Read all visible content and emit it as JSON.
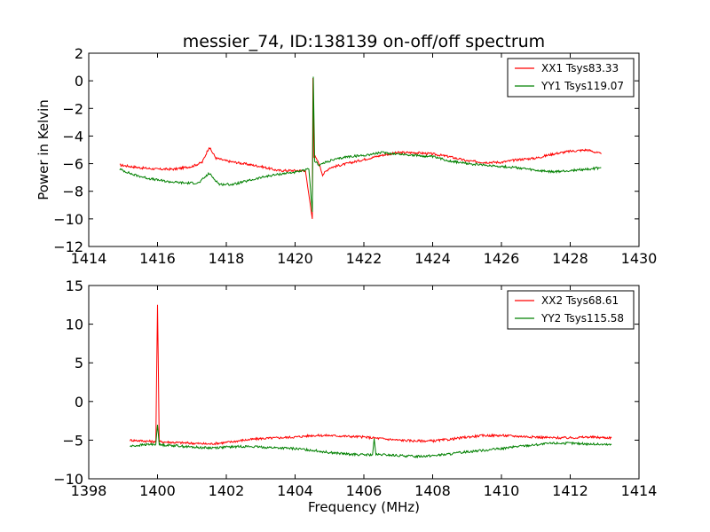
{
  "figure": {
    "title": "messier_74, ID:138139 on-off/off spectrum"
  },
  "chart_data": [
    {
      "type": "line",
      "title": "messier_74, ID:138139 on-off/off spectrum",
      "xlabel": "",
      "ylabel": "Power in Kelvin",
      "xlim": [
        1414,
        1430
      ],
      "ylim": [
        -12,
        2
      ],
      "xticks": [
        1414,
        1416,
        1418,
        1420,
        1422,
        1424,
        1426,
        1428,
        1430
      ],
      "yticks": [
        -12,
        -10,
        -8,
        -6,
        -4,
        -2,
        0,
        2
      ],
      "grid": false,
      "legend": "top-right",
      "series": [
        {
          "name": "XX1 Tsys83.33",
          "color": "#ff0000",
          "x": [
            1414.9,
            1415.5,
            1416.0,
            1416.5,
            1417.0,
            1417.3,
            1417.5,
            1417.7,
            1418.0,
            1418.5,
            1419.0,
            1419.5,
            1420.0,
            1420.3,
            1420.5,
            1420.52,
            1420.55,
            1420.58,
            1420.7,
            1420.8,
            1421.0,
            1421.5,
            1422.0,
            1422.5,
            1423.0,
            1423.5,
            1424.0,
            1424.5,
            1425.0,
            1425.5,
            1426.0,
            1426.5,
            1427.0,
            1427.5,
            1428.0,
            1428.5,
            1428.9
          ],
          "y": [
            -6.1,
            -6.3,
            -6.4,
            -6.4,
            -6.2,
            -5.9,
            -4.8,
            -5.6,
            -5.8,
            -6.0,
            -6.2,
            -6.5,
            -6.5,
            -6.5,
            -10.0,
            0.2,
            -5.5,
            -5.5,
            -6.0,
            -6.8,
            -6.3,
            -6.0,
            -5.7,
            -5.4,
            -5.2,
            -5.2,
            -5.3,
            -5.5,
            -5.8,
            -5.9,
            -5.9,
            -5.7,
            -5.6,
            -5.3,
            -5.1,
            -5.0,
            -5.3
          ]
        },
        {
          "name": "YY1 Tsys119.07",
          "color": "#008000",
          "x": [
            1414.9,
            1415.3,
            1415.8,
            1416.3,
            1416.8,
            1417.2,
            1417.5,
            1417.8,
            1418.2,
            1418.7,
            1419.2,
            1419.7,
            1420.1,
            1420.4,
            1420.5,
            1420.53,
            1420.57,
            1420.7,
            1421.0,
            1421.5,
            1422.0,
            1422.5,
            1423.0,
            1423.5,
            1424.0,
            1424.5,
            1425.0,
            1425.5,
            1426.0,
            1426.5,
            1427.0,
            1427.5,
            1428.0,
            1428.5,
            1428.9
          ],
          "y": [
            -6.4,
            -6.8,
            -7.1,
            -7.3,
            -7.4,
            -7.4,
            -6.7,
            -7.5,
            -7.5,
            -7.2,
            -6.9,
            -6.7,
            -6.6,
            -6.4,
            -9.5,
            0.3,
            -5.8,
            -6.1,
            -5.8,
            -5.5,
            -5.4,
            -5.2,
            -5.3,
            -5.4,
            -5.5,
            -5.8,
            -6.0,
            -6.1,
            -6.2,
            -6.3,
            -6.5,
            -6.6,
            -6.5,
            -6.4,
            -6.3
          ]
        }
      ]
    },
    {
      "type": "line",
      "title": "",
      "xlabel": "Frequency (MHz)",
      "ylabel": "",
      "xlim": [
        1398,
        1414
      ],
      "ylim": [
        -10,
        15
      ],
      "xticks": [
        1398,
        1400,
        1402,
        1404,
        1406,
        1408,
        1410,
        1412,
        1414
      ],
      "yticks": [
        -10,
        -5,
        0,
        5,
        10,
        15
      ],
      "grid": false,
      "legend": "top-right",
      "series": [
        {
          "name": "XX2 Tsys68.61",
          "color": "#ff0000",
          "x": [
            1399.2,
            1399.6,
            1399.95,
            1400.0,
            1400.05,
            1400.5,
            1401.0,
            1401.5,
            1402.0,
            1402.5,
            1403.0,
            1403.5,
            1404.0,
            1404.5,
            1405.0,
            1405.5,
            1406.0,
            1406.5,
            1407.0,
            1407.5,
            1408.0,
            1408.5,
            1409.0,
            1409.5,
            1410.0,
            1410.5,
            1411.0,
            1411.5,
            1412.0,
            1412.5,
            1413.2
          ],
          "y": [
            -5.0,
            -5.1,
            -5.2,
            12.5,
            -5.2,
            -5.3,
            -5.4,
            -5.5,
            -5.3,
            -5.0,
            -4.8,
            -4.7,
            -4.6,
            -4.4,
            -4.4,
            -4.5,
            -4.6,
            -4.8,
            -5.0,
            -5.1,
            -5.1,
            -4.9,
            -4.6,
            -4.4,
            -4.4,
            -4.5,
            -4.6,
            -4.7,
            -4.7,
            -4.6,
            -4.7
          ]
        },
        {
          "name": "YY2 Tsys115.58",
          "color": "#008000",
          "x": [
            1399.2,
            1399.6,
            1399.95,
            1400.0,
            1400.05,
            1400.5,
            1401.0,
            1401.5,
            1402.0,
            1402.5,
            1403.0,
            1403.5,
            1404.0,
            1404.5,
            1405.0,
            1405.5,
            1406.0,
            1406.25,
            1406.3,
            1406.35,
            1406.6,
            1407.0,
            1407.5,
            1408.0,
            1408.5,
            1409.0,
            1409.5,
            1410.0,
            1410.5,
            1411.0,
            1411.5,
            1412.0,
            1412.5,
            1413.2
          ],
          "y": [
            -5.8,
            -5.6,
            -5.5,
            -3.0,
            -5.6,
            -5.7,
            -5.9,
            -6.0,
            -5.9,
            -5.8,
            -5.9,
            -6.0,
            -6.1,
            -6.3,
            -6.6,
            -6.8,
            -6.9,
            -6.9,
            -4.8,
            -6.9,
            -6.9,
            -7.0,
            -7.1,
            -7.0,
            -6.8,
            -6.5,
            -6.3,
            -6.1,
            -5.8,
            -5.6,
            -5.4,
            -5.4,
            -5.5,
            -5.6
          ]
        }
      ]
    }
  ]
}
